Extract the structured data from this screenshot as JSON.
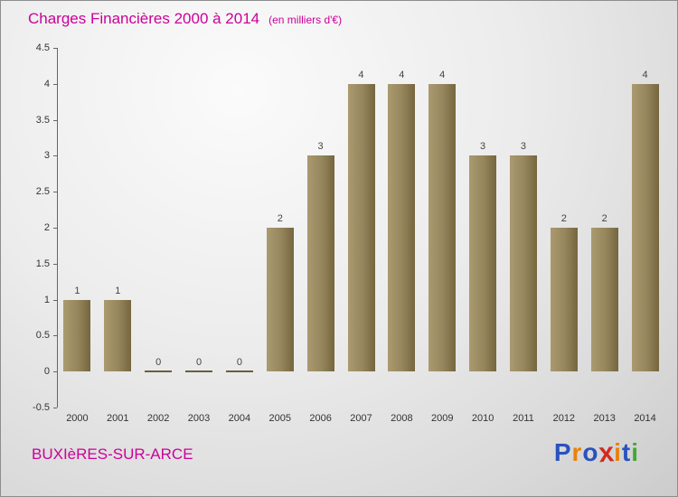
{
  "header": {
    "title": "Charges Financières 2000 à 2014",
    "subtitle": "(en milliers d'€)"
  },
  "chart_data": {
    "type": "bar",
    "categories": [
      "2000",
      "2001",
      "2002",
      "2003",
      "2004",
      "2005",
      "2006",
      "2007",
      "2008",
      "2009",
      "2010",
      "2011",
      "2012",
      "2013",
      "2014"
    ],
    "values": [
      1,
      1,
      0,
      0,
      0,
      2,
      3,
      4,
      4,
      4,
      3,
      3,
      2,
      2,
      4
    ],
    "title": "Charges Financières 2000 à 2014",
    "subtitle": "(en milliers d'€)",
    "xlabel": "",
    "ylabel": "",
    "ylim": [
      -0.5,
      4.5
    ],
    "ytick_step": 0.5,
    "grid": false,
    "legend": "none",
    "bar_color_light": "#ab9a70",
    "bar_color_dark": "#75663f",
    "value_labels_shown": true
  },
  "footer": {
    "location": "BUXIèRES-SUR-ARCE",
    "logo_text": "Proxiti",
    "logo_letters": [
      {
        "ch": "P",
        "color": "#2a52be"
      },
      {
        "ch": "r",
        "color": "#e8820c"
      },
      {
        "ch": "o",
        "color": "#2a52be"
      },
      {
        "ch": "x",
        "color": "#d42a1e"
      },
      {
        "ch": "i",
        "color": "#e8820c"
      },
      {
        "ch": "t",
        "color": "#2a52be"
      },
      {
        "ch": "i",
        "color": "#3faa35"
      }
    ]
  },
  "colors": {
    "title_text": "#cc0099",
    "axis": "#666666",
    "tick_text": "#333333",
    "value_text": "#444444"
  }
}
